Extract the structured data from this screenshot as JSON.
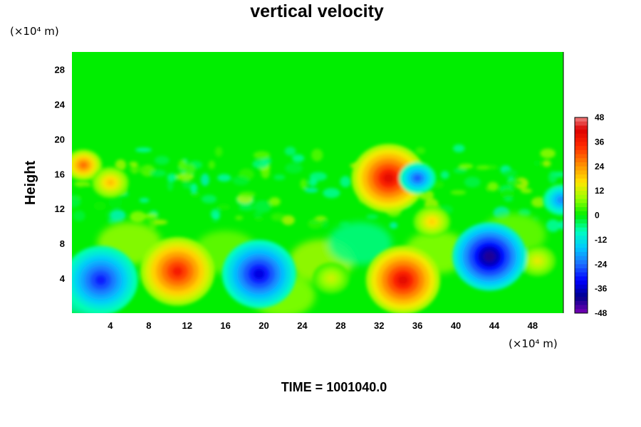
{
  "chart_data": {
    "type": "heatmap",
    "title": "vertical velocity",
    "ylabel": "Height",
    "x_unit_label": "(×10⁴ m)",
    "y_unit_label": "(×10⁴ m)",
    "xlim": [
      0,
      51.2
    ],
    "ylim": [
      0,
      30
    ],
    "xticks": [
      4,
      8,
      12,
      16,
      20,
      24,
      28,
      32,
      36,
      40,
      44,
      48
    ],
    "yticks": [
      4,
      8,
      12,
      16,
      20,
      24,
      28
    ],
    "colorbar": {
      "range": [
        -48,
        48
      ],
      "ticks": [
        48,
        36,
        24,
        12,
        0,
        -12,
        -24,
        -36,
        -48
      ],
      "colors": [
        "#f08080",
        "#ff0000",
        "#ff8c00",
        "#ffd700",
        "#adff2f",
        "#00ff00",
        "#00ffaa",
        "#00e5ff",
        "#1e90ff",
        "#0000ff",
        "#00008b",
        "#8b00ff"
      ]
    },
    "features": [
      {
        "x": 11.0,
        "z": 4.8,
        "w": 36,
        "desc": "updraft"
      },
      {
        "x": 34.5,
        "z": 3.8,
        "w": 40,
        "desc": "updraft"
      },
      {
        "x": 33.0,
        "z": 15.5,
        "w": 40,
        "desc": "updraft"
      },
      {
        "x": 1.2,
        "z": 17.0,
        "w": 28,
        "desc": "updraft"
      },
      {
        "x": 4.0,
        "z": 15.0,
        "w": 20,
        "desc": "updraft"
      },
      {
        "x": 27.0,
        "z": 4.0,
        "w": 12,
        "desc": "updraft"
      },
      {
        "x": 37.5,
        "z": 10.5,
        "w": 18,
        "desc": "updraft"
      },
      {
        "x": 48.5,
        "z": 6.0,
        "w": 14,
        "desc": "updraft"
      },
      {
        "x": 3.0,
        "z": 3.8,
        "w": -30,
        "desc": "downdraft"
      },
      {
        "x": 19.5,
        "z": 4.5,
        "w": -34,
        "desc": "downdraft"
      },
      {
        "x": 43.5,
        "z": 6.5,
        "w": -42,
        "desc": "downdraft"
      },
      {
        "x": 36.0,
        "z": 15.5,
        "w": -26,
        "desc": "downdraft"
      },
      {
        "x": 51.0,
        "z": 13.0,
        "w": -22,
        "desc": "downdraft"
      }
    ]
  },
  "time_label": "TIME = 1001040.0"
}
